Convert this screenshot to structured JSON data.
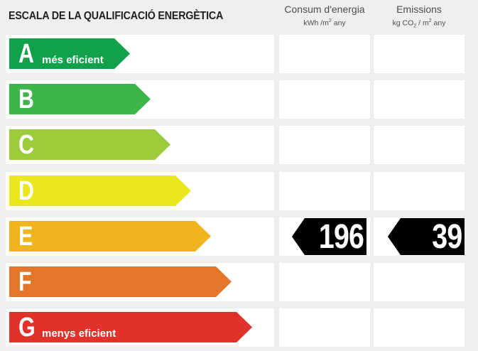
{
  "title": "ESCALA DE LA QUALIFICACIÓ ENERGÈTICA",
  "columns": {
    "consum": {
      "label": "Consum d'energia",
      "unit_pre": "kWh /m",
      "unit_sup": "2",
      "unit_post": " any"
    },
    "emissions": {
      "label": "Emissions",
      "unit_a": "kg CO",
      "unit_sub": "2",
      "unit_b": " / m",
      "unit_sup": "2",
      "unit_c": " any"
    }
  },
  "chart_data": {
    "type": "bar",
    "categories": [
      "A",
      "B",
      "C",
      "D",
      "E",
      "F",
      "G"
    ],
    "category_labels": {
      "A": "més eficient",
      "G": "menys eficient"
    },
    "colors": [
      "#12a04b",
      "#3db54a",
      "#9ccb3b",
      "#ece71c",
      "#f0b41e",
      "#e3762a",
      "#e0312a"
    ],
    "rating": "E",
    "consum_value": "196",
    "emissions_value": "39"
  }
}
